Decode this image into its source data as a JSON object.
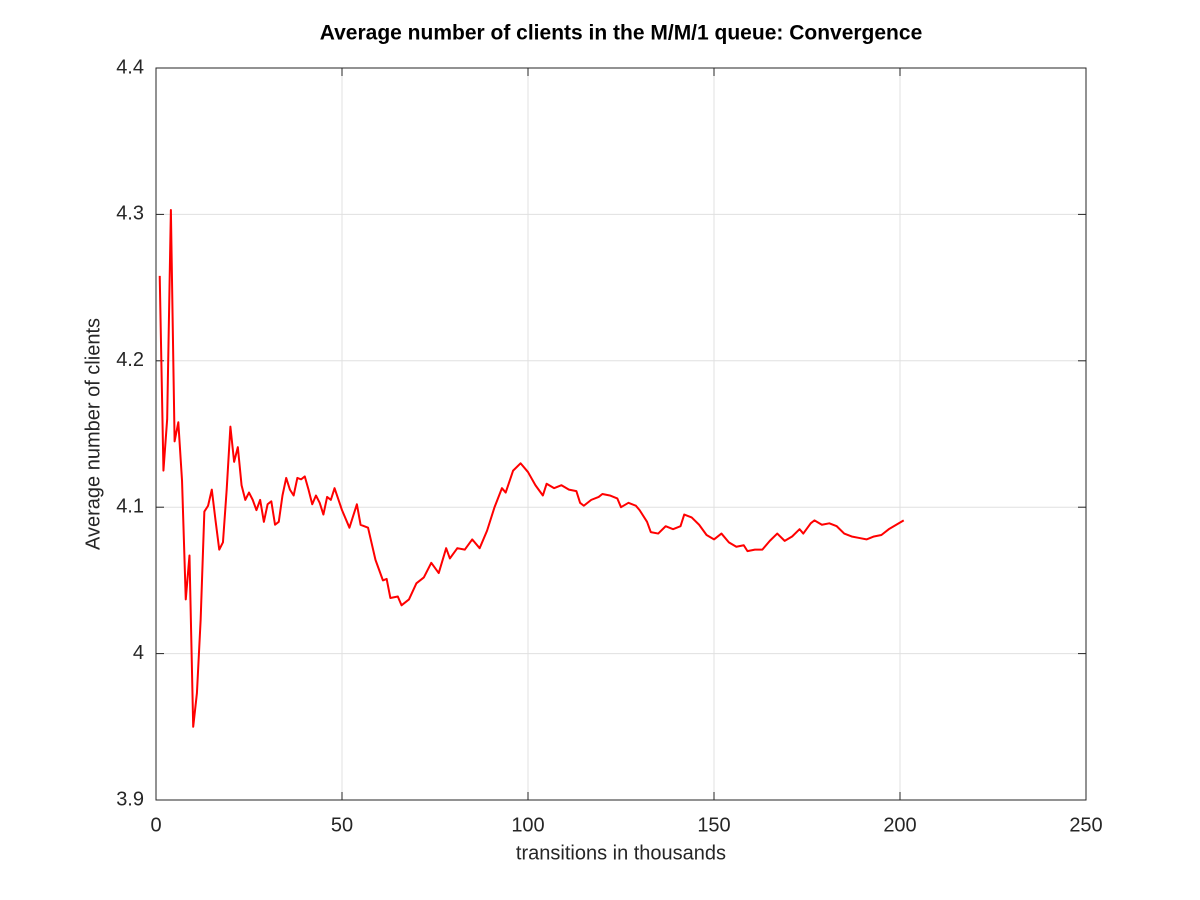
{
  "chart_data": {
    "type": "line",
    "title": "Average number of clients in the M/M/1 queue: Convergence",
    "x_label": "transitions in thousands",
    "y_label": "Average number of clients",
    "color": "#ff0000",
    "grid": true,
    "xlim": [
      0,
      250
    ],
    "xticks": [
      0,
      50,
      100,
      150,
      200,
      250
    ],
    "ylim": [
      3.9,
      4.4
    ],
    "yticks": [
      3.9,
      4,
      4.1,
      4.2,
      4.3,
      4.4
    ],
    "x": [
      1,
      2,
      3,
      4,
      5,
      6,
      7,
      8,
      9,
      10,
      11,
      12,
      13,
      14,
      15,
      16,
      17,
      18,
      19,
      20,
      21,
      22,
      23,
      24,
      25,
      26,
      27,
      28,
      29,
      30,
      31,
      32,
      33,
      34,
      35,
      36,
      37,
      38,
      39,
      40,
      41,
      42,
      43,
      44,
      45,
      46,
      47,
      48,
      50,
      52,
      54,
      55,
      57,
      59,
      61,
      62,
      63,
      65,
      66,
      68,
      70,
      72,
      74,
      76,
      78,
      79,
      81,
      83,
      85,
      87,
      89,
      91,
      93,
      94,
      96,
      98,
      100,
      102,
      104,
      105,
      107,
      109,
      111,
      113,
      114,
      115,
      117,
      119,
      120,
      122,
      124,
      125,
      127,
      129,
      130,
      132,
      133,
      135,
      137,
      139,
      141,
      142,
      144,
      146,
      148,
      150,
      152,
      154,
      156,
      158,
      159,
      161,
      163,
      165,
      167,
      169,
      171,
      173,
      174,
      176,
      177,
      179,
      181,
      183,
      185,
      187,
      189,
      191,
      193,
      195,
      197,
      199,
      201
    ],
    "values": [
      4.258,
      4.125,
      4.16,
      4.303,
      4.145,
      4.158,
      4.118,
      4.037,
      4.067,
      3.95,
      3.973,
      4.023,
      4.097,
      4.101,
      4.112,
      4.091,
      4.071,
      4.076,
      4.112,
      4.155,
      4.131,
      4.141,
      4.115,
      4.105,
      4.11,
      4.105,
      4.098,
      4.105,
      4.09,
      4.102,
      4.104,
      4.088,
      4.09,
      4.108,
      4.12,
      4.112,
      4.108,
      4.12,
      4.119,
      4.121,
      4.112,
      4.102,
      4.108,
      4.103,
      4.095,
      4.107,
      4.105,
      4.113,
      4.098,
      4.086,
      4.102,
      4.088,
      4.086,
      4.064,
      4.05,
      4.051,
      4.038,
      4.039,
      4.033,
      4.037,
      4.048,
      4.052,
      4.062,
      4.055,
      4.072,
      4.065,
      4.072,
      4.071,
      4.078,
      4.072,
      4.084,
      4.1,
      4.113,
      4.11,
      4.125,
      4.13,
      4.124,
      4.115,
      4.108,
      4.116,
      4.113,
      4.115,
      4.112,
      4.111,
      4.103,
      4.101,
      4.105,
      4.107,
      4.109,
      4.108,
      4.106,
      4.1,
      4.103,
      4.101,
      4.098,
      4.09,
      4.083,
      4.082,
      4.087,
      4.085,
      4.087,
      4.095,
      4.093,
      4.088,
      4.081,
      4.078,
      4.082,
      4.076,
      4.073,
      4.074,
      4.07,
      4.071,
      4.071,
      4.077,
      4.082,
      4.077,
      4.08,
      4.085,
      4.082,
      4.089,
      4.091,
      4.088,
      4.089,
      4.087,
      4.082,
      4.08,
      4.079,
      4.078,
      4.08,
      4.081,
      4.085,
      4.088,
      4.091
    ]
  }
}
